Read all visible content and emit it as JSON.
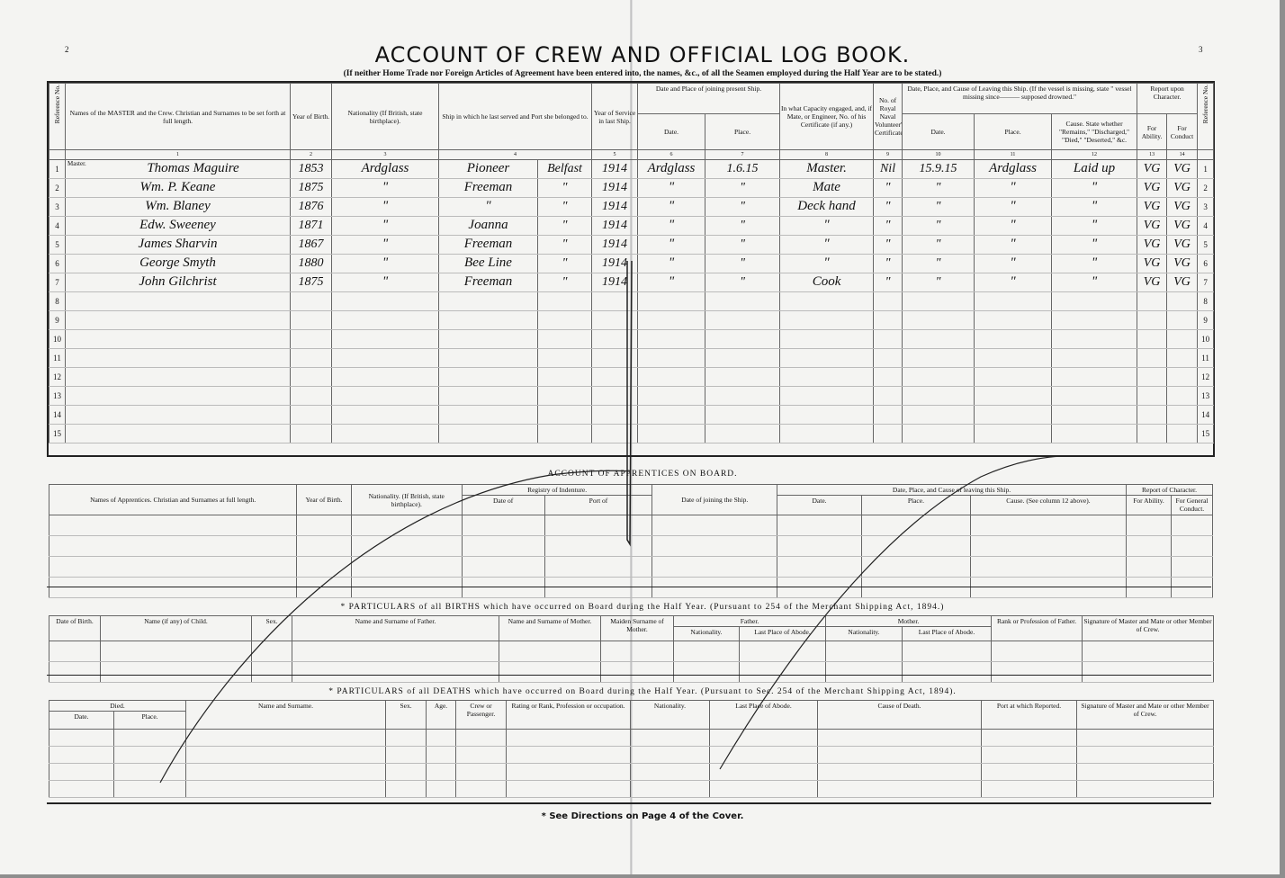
{
  "page_numbers": {
    "left": "2",
    "right": "3"
  },
  "title": "ACCOUNT OF CREW AND OFFICIAL LOG BOOK.",
  "subtitle": "(If neither Home Trade nor Foreign Articles of Agreement have been entered into, the names, &c., of all the Seamen employed during the Half Year are to be stated.)",
  "crew": {
    "headers": {
      "ref": "Reference No.",
      "name": "Names of the MASTER and the Crew. Christian and Surnames to be set forth at full length.",
      "year_birth": "Year of Birth.",
      "nationality": "Nationality (If British, state birthplace).",
      "last_ship": "Ship in which he last served and Port she belonged to.",
      "year_service": "Year of Service in last Ship.",
      "joining": "Date and Place of joining present Ship.",
      "join_date": "Date.",
      "join_place": "Place.",
      "capacity": "In what Capacity engaged, and, if Mate, or Engineer, No. of his Certificate (if any.)",
      "rnv": "No. of Royal Naval Volunteer's Certificate.",
      "leaving": "Date, Place, and Cause of Leaving this Ship. (If the vessel is missing, state \" vessel missing since——— supposed drowned.\"",
      "leave_date": "Date.",
      "leave_place": "Place.",
      "cause": "Cause. State whether \"Remains,\" \"Discharged,\" \"Died,\" \"Deserted,\" &c.",
      "report": "Report upon Character.",
      "ability": "For Ability.",
      "conduct": "For Conduct"
    },
    "col_numbers": [
      "1",
      "2",
      "3",
      "4",
      "5",
      "6",
      "7",
      "8",
      "9",
      "10",
      "11",
      "12",
      "13",
      "14"
    ],
    "master_label": "Master.",
    "rows": [
      {
        "ref": "1",
        "name": "Thomas Maguire",
        "year": "1853",
        "nationality": "Ardglass",
        "ship": "Pioneer",
        "port": "Belfast",
        "service": "1914",
        "join_date": "Ardglass",
        "join_place": "1.6.15",
        "capacity": "Master.",
        "rnv": "Nil",
        "leave_date": "15.9.15",
        "leave_place": "Ardglass",
        "cause": "Laid up",
        "ability": "VG",
        "conduct": "VG"
      },
      {
        "ref": "2",
        "name": "Wm. P. Keane",
        "year": "1875",
        "nationality": "\"",
        "ship": "Freeman",
        "port": "\"",
        "service": "1914",
        "join_date": "\"",
        "join_place": "\"",
        "capacity": "Mate",
        "rnv": "\"",
        "leave_date": "\"",
        "leave_place": "\"",
        "cause": "\"",
        "ability": "VG",
        "conduct": "VG"
      },
      {
        "ref": "3",
        "name": "Wm. Blaney",
        "year": "1876",
        "nationality": "\"",
        "ship": "\"",
        "port": "\"",
        "service": "1914",
        "join_date": "\"",
        "join_place": "\"",
        "capacity": "Deck hand",
        "rnv": "\"",
        "leave_date": "\"",
        "leave_place": "\"",
        "cause": "\"",
        "ability": "VG",
        "conduct": "VG"
      },
      {
        "ref": "4",
        "name": "Edw. Sweeney",
        "year": "1871",
        "nationality": "\"",
        "ship": "Joanna",
        "port": "\"",
        "service": "1914",
        "join_date": "\"",
        "join_place": "\"",
        "capacity": "\"",
        "rnv": "\"",
        "leave_date": "\"",
        "leave_place": "\"",
        "cause": "\"",
        "ability": "VG",
        "conduct": "VG"
      },
      {
        "ref": "5",
        "name": "James Sharvin",
        "year": "1867",
        "nationality": "\"",
        "ship": "Freeman",
        "port": "\"",
        "service": "1914",
        "join_date": "\"",
        "join_place": "\"",
        "capacity": "\"",
        "rnv": "\"",
        "leave_date": "\"",
        "leave_place": "\"",
        "cause": "\"",
        "ability": "VG",
        "conduct": "VG"
      },
      {
        "ref": "6",
        "name": "George Smyth",
        "year": "1880",
        "nationality": "\"",
        "ship": "Bee Line",
        "port": "\"",
        "service": "1914",
        "join_date": "\"",
        "join_place": "\"",
        "capacity": "\"",
        "rnv": "\"",
        "leave_date": "\"",
        "leave_place": "\"",
        "cause": "\"",
        "ability": "VG",
        "conduct": "VG"
      },
      {
        "ref": "7",
        "name": "John Gilchrist",
        "year": "1875",
        "nationality": "\"",
        "ship": "Freeman",
        "port": "\"",
        "service": "1914",
        "join_date": "\"",
        "join_place": "\"",
        "capacity": "Cook",
        "rnv": "\"",
        "leave_date": "\"",
        "leave_place": "\"",
        "cause": "\"",
        "ability": "VG",
        "conduct": "VG"
      },
      {
        "ref": "8"
      },
      {
        "ref": "9"
      },
      {
        "ref": "10"
      },
      {
        "ref": "11"
      },
      {
        "ref": "12"
      },
      {
        "ref": "13"
      },
      {
        "ref": "14"
      },
      {
        "ref": "15"
      }
    ]
  },
  "apprentices": {
    "title": "ACCOUNT OF APPRENTICES ON BOARD.",
    "headers": [
      "Names of Apprentices. Christian and Surnames at full length.",
      "Year of Birth.",
      "Nationality. (If British, state birthplace).",
      "Registry of Indenture.",
      "Date of",
      "Port of",
      "Date of joining the Ship.",
      "Date, Place, and Cause of leaving this Ship.",
      "Date.",
      "Place.",
      "Cause. (See column 12 above).",
      "Report of Character.",
      "For Ability.",
      "For General Conduct."
    ]
  },
  "births": {
    "title": "* PARTICULARS of all BIRTHS which have occurred on Board during the Half Year.     (Pursuant to 254 of the Merchant Shipping Act, 1894.)",
    "headers": [
      "Date of Birth.",
      "Name (if any) of Child.",
      "Sex.",
      "Name and Surname of Father.",
      "Name and Surname of Mother.",
      "Maiden Surname of Mother.",
      "Father.",
      "Nationality.",
      "Last Place of Abode.",
      "Mother.",
      "Nationality.",
      "Last Place of Abode.",
      "Rank or Profession of Father.",
      "Signature of Master and Mate or other Member of Crew."
    ]
  },
  "deaths": {
    "title": "* PARTICULARS of all DEATHS which have occurred on Board during the Half Year.     (Pursuant to Sec. 254 of the Merchant Shipping Act, 1894).",
    "headers": [
      "Died.",
      "Date.",
      "Place.",
      "Name and Surname.",
      "Sex.",
      "Age.",
      "Crew or Passenger.",
      "Rating or Rank, Profession or occupation.",
      "Nationality.",
      "Last Place of Abode.",
      "Cause of Death.",
      "Port at which Reported.",
      "Signature of Master and Mate or other Member of Crew."
    ]
  },
  "footer": "* See Directions on Page 4 of the Cover."
}
